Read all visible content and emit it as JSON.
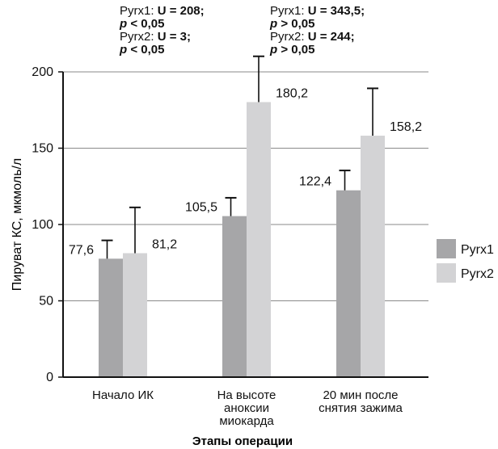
{
  "chart_data": {
    "type": "bar",
    "xlabel": "Этапы операции",
    "ylabel": "Пируват КС, мкмоль/л",
    "ylim": [
      0,
      200
    ],
    "yticks": [
      "0",
      "50",
      "100",
      "150",
      "200"
    ],
    "grid": true,
    "legend_position": "right",
    "categories": [
      [
        "Начало ИК"
      ],
      [
        "На высоте",
        "аноксии",
        "миокарда"
      ],
      [
        "20 мин после",
        "снятия зажима"
      ]
    ],
    "series": [
      {
        "name": "Pyrx1",
        "color": "#a6a6a8",
        "values": [
          77.6,
          105.5,
          122.4
        ],
        "labels": [
          "77,6",
          "105,5",
          "122,4"
        ],
        "errors": [
          12,
          12,
          13
        ]
      },
      {
        "name": "Pyrx2",
        "color": "#d3d3d5",
        "values": [
          81.2,
          180.2,
          158.2
        ],
        "labels": [
          "81,2",
          "180,2",
          "158,2"
        ],
        "errors": [
          30,
          30,
          31
        ]
      }
    ],
    "annotations": [
      {
        "lines": [
          {
            "series": "Pyrx1:",
            "stat": "U = 208;"
          },
          {
            "p": "p",
            "rest": " < 0,05"
          },
          {
            "series": "Pyrx2:",
            "stat": "U = 3;"
          },
          {
            "p": "p",
            "rest": " < 0,05"
          }
        ]
      },
      {
        "lines": [
          {
            "series": "Pyrx1:",
            "stat": "U = 343,5;"
          },
          {
            "p": "p",
            "rest": " > 0,05"
          },
          {
            "series": "Pyrx2:",
            "stat": "U = 244;"
          },
          {
            "p": "p",
            "rest": " > 0,05"
          }
        ]
      }
    ]
  }
}
